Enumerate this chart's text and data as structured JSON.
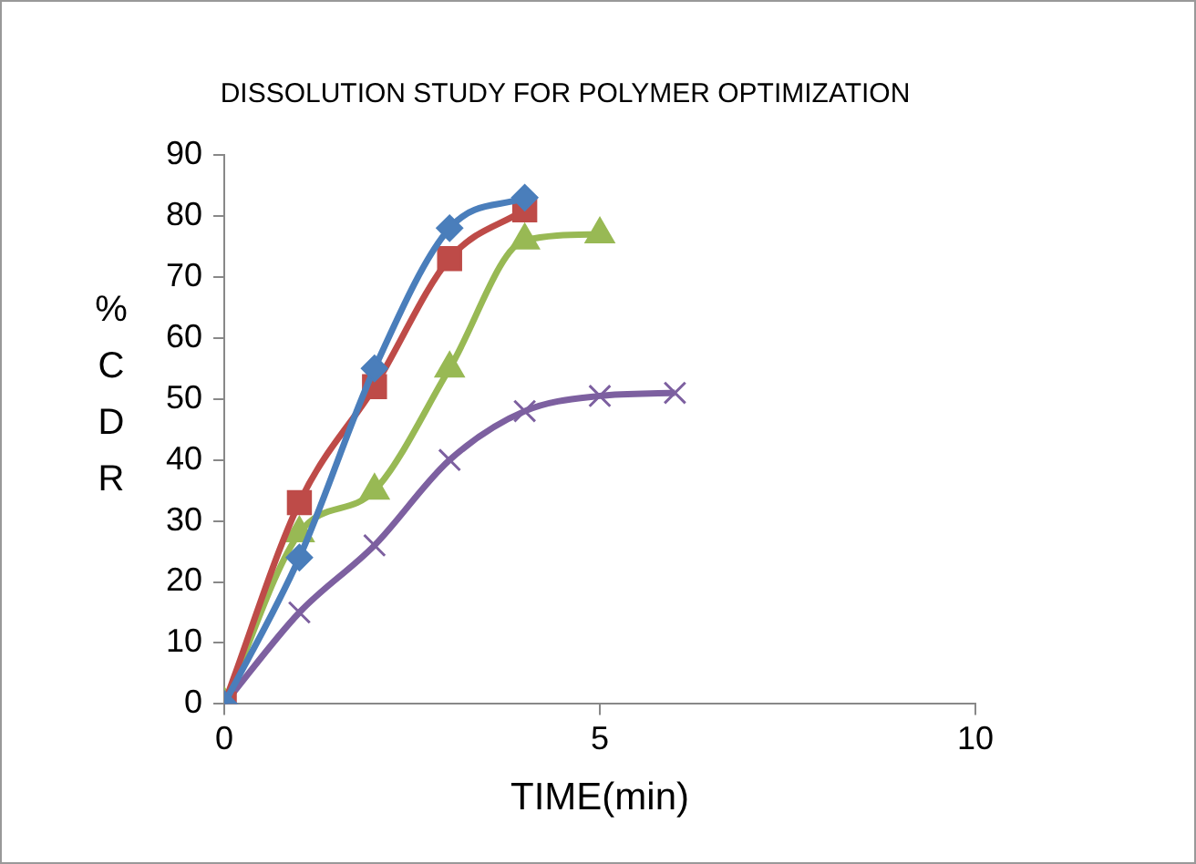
{
  "chart_data": {
    "type": "line",
    "title": "DISSOLUTION STUDY FOR POLYMER OPTIMIZATION",
    "xlabel": "TIME(min)",
    "ylabel": "%CDR",
    "xlim": [
      0,
      10
    ],
    "xticks": [
      0,
      5,
      10
    ],
    "ylim": [
      0,
      90
    ],
    "yticks": [
      0,
      10,
      20,
      30,
      40,
      50,
      60,
      70,
      80,
      90
    ],
    "grid": false,
    "legend": false,
    "series": [
      {
        "color": "#4a7ebb",
        "marker": "diamond",
        "x": [
          0,
          1,
          2,
          3,
          4
        ],
        "values": [
          0,
          24,
          55,
          78,
          83
        ]
      },
      {
        "color": "#be4b48",
        "marker": "square",
        "x": [
          0,
          1,
          2,
          3,
          4
        ],
        "values": [
          0,
          33,
          52,
          73,
          81
        ]
      },
      {
        "color": "#98b954",
        "marker": "triangle",
        "x": [
          0,
          1,
          2,
          3,
          4,
          5
        ],
        "values": [
          0,
          28,
          35,
          55,
          76,
          77
        ]
      },
      {
        "color": "#7d60a0",
        "marker": "cross",
        "x": [
          0,
          1,
          2,
          3,
          4,
          5,
          6
        ],
        "values": [
          0,
          15,
          26,
          40,
          48,
          50.5,
          51
        ]
      }
    ]
  }
}
